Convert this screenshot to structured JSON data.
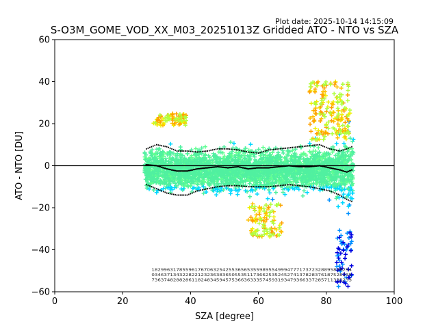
{
  "plot_date": "Plot date: 2025-10-14 14:15:09",
  "chart_data": {
    "type": "scatter",
    "title": "S-O3M_GOME_VOD_XX_M03_20251013Z Gridded ATO - NTO vs SZA",
    "xlabel": "SZA [degree]",
    "ylabel": "ATO - NTO [DU]",
    "xlim": [
      0,
      100
    ],
    "ylim": [
      -60,
      60
    ],
    "x_ticks": [
      0,
      20,
      40,
      60,
      80,
      100
    ],
    "y_ticks": [
      -60,
      -40,
      -20,
      0,
      20,
      40,
      60
    ],
    "x_tick_labels": [
      "0",
      "20",
      "40",
      "60",
      "80",
      "100"
    ],
    "y_tick_labels": [
      "−60",
      "−40",
      "−20",
      "0",
      "20",
      "40",
      "60"
    ],
    "marker": "+",
    "reference_line_y": 0,
    "sza_range": [
      26.5,
      88
    ],
    "color_scale": [
      "#0000e0",
      "#0090ff",
      "#00d8ff",
      "#50f0a0",
      "#60ff90",
      "#b0ff40",
      "#f0f000",
      "#ffc000",
      "#ffa000"
    ],
    "mean_curve": {
      "x": [
        27,
        30,
        33,
        36,
        39,
        42,
        45,
        48,
        51,
        54,
        57,
        60,
        63,
        66,
        69,
        72,
        75,
        78,
        81,
        84,
        86,
        87.5
      ],
      "y": [
        0.5,
        0,
        -1.5,
        -2.5,
        -2.5,
        -1.5,
        -1,
        -0.5,
        -1,
        -0.5,
        -1.5,
        -1,
        -1,
        -0.5,
        0,
        -0.5,
        -0.5,
        0,
        -1,
        -2,
        -3,
        -2
      ]
    },
    "upper_sigma_curve": {
      "x": [
        27,
        30,
        33,
        36,
        39,
        42,
        45,
        48,
        51,
        54,
        57,
        60,
        63,
        66,
        69,
        72,
        75,
        78,
        81,
        84,
        86,
        87.5
      ],
      "y": [
        8,
        10,
        9,
        7,
        7,
        6.5,
        7,
        8,
        8,
        7.5,
        6.5,
        6,
        7.5,
        8,
        8.5,
        9,
        9.5,
        10,
        8,
        7,
        8,
        9
      ]
    },
    "lower_sigma_curve": {
      "x": [
        27,
        30,
        33,
        36,
        39,
        42,
        45,
        48,
        51,
        54,
        57,
        60,
        63,
        66,
        69,
        72,
        75,
        78,
        81,
        84,
        86,
        87.5
      ],
      "y": [
        -9,
        -11,
        -13,
        -14,
        -14,
        -12,
        -11,
        -10,
        -9.5,
        -9.5,
        -10,
        -10,
        -10,
        -9.5,
        -9,
        -9.5,
        -10,
        -11,
        -12,
        -14,
        -16,
        -17
      ]
    },
    "stat_rows": [
      "18299631785596176706325425536565355989554999477717372328895829294",
      "03463713432282212323638365055351173662535245274137828376187528235",
      "73637482882861182483459457536636333574593193479366337285711333233"
    ]
  }
}
